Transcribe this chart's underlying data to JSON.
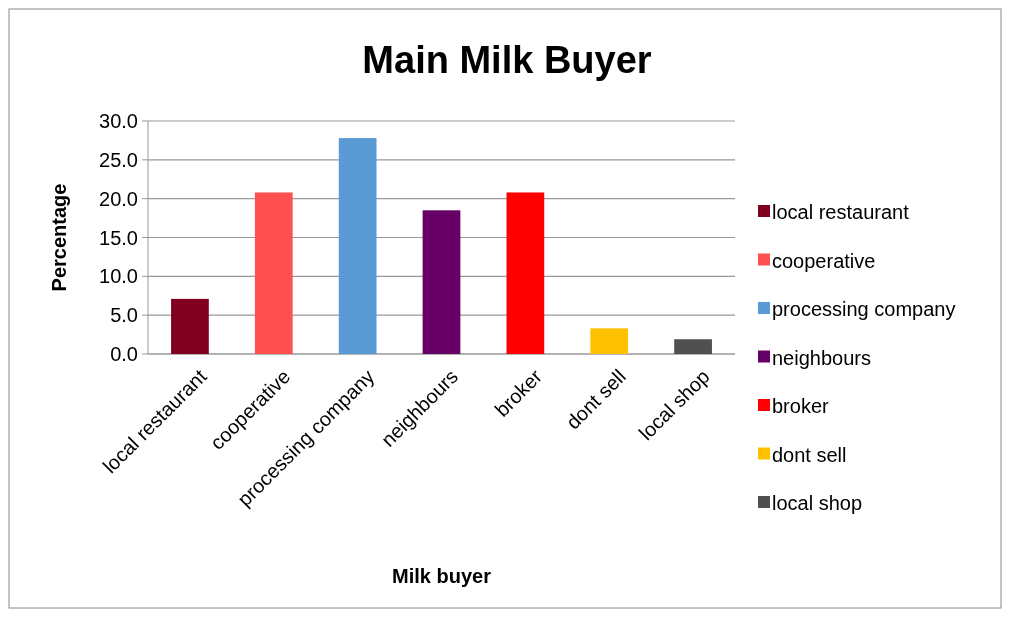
{
  "chart_data": {
    "type": "bar",
    "title": "Main Milk Buyer",
    "xlabel": "Milk buyer",
    "ylabel": "Percentage",
    "categories": [
      "local restaurant",
      "cooperative",
      "processing company",
      "neighbours",
      "broker",
      "dont sell",
      "local shop"
    ],
    "series": [
      {
        "name": "local restaurant",
        "color": "#7f0020",
        "values": [
          7.1,
          null,
          null,
          null,
          null,
          null,
          null
        ]
      },
      {
        "name": "cooperative",
        "color": "#ff5050",
        "values": [
          null,
          20.8,
          null,
          null,
          null,
          null,
          null
        ]
      },
      {
        "name": "processing company",
        "color": "#5b9bd5",
        "values": [
          null,
          null,
          27.8,
          null,
          null,
          null,
          null
        ]
      },
      {
        "name": "neighbours",
        "color": "#660066",
        "values": [
          null,
          null,
          null,
          18.5,
          null,
          null,
          null
        ]
      },
      {
        "name": "broker",
        "color": "#ff0000",
        "values": [
          null,
          null,
          null,
          null,
          20.8,
          null,
          null
        ]
      },
      {
        "name": "dont sell",
        "color": "#ffc000",
        "values": [
          null,
          null,
          null,
          null,
          null,
          3.3,
          null
        ]
      },
      {
        "name": "local shop",
        "color": "#505050",
        "values": [
          null,
          null,
          null,
          null,
          null,
          null,
          1.9
        ]
      }
    ],
    "ylim": [
      0,
      30
    ],
    "yticks": [
      {
        "value": 0,
        "label": "0.0"
      },
      {
        "value": 5,
        "label": "5.0"
      },
      {
        "value": 10,
        "label": "10.0"
      },
      {
        "value": 15,
        "label": "15.0"
      },
      {
        "value": 20,
        "label": "20.0"
      },
      {
        "value": 25,
        "label": "25.0"
      },
      {
        "value": 30,
        "label": "30.0"
      }
    ],
    "grid": "y",
    "legend": "right"
  }
}
